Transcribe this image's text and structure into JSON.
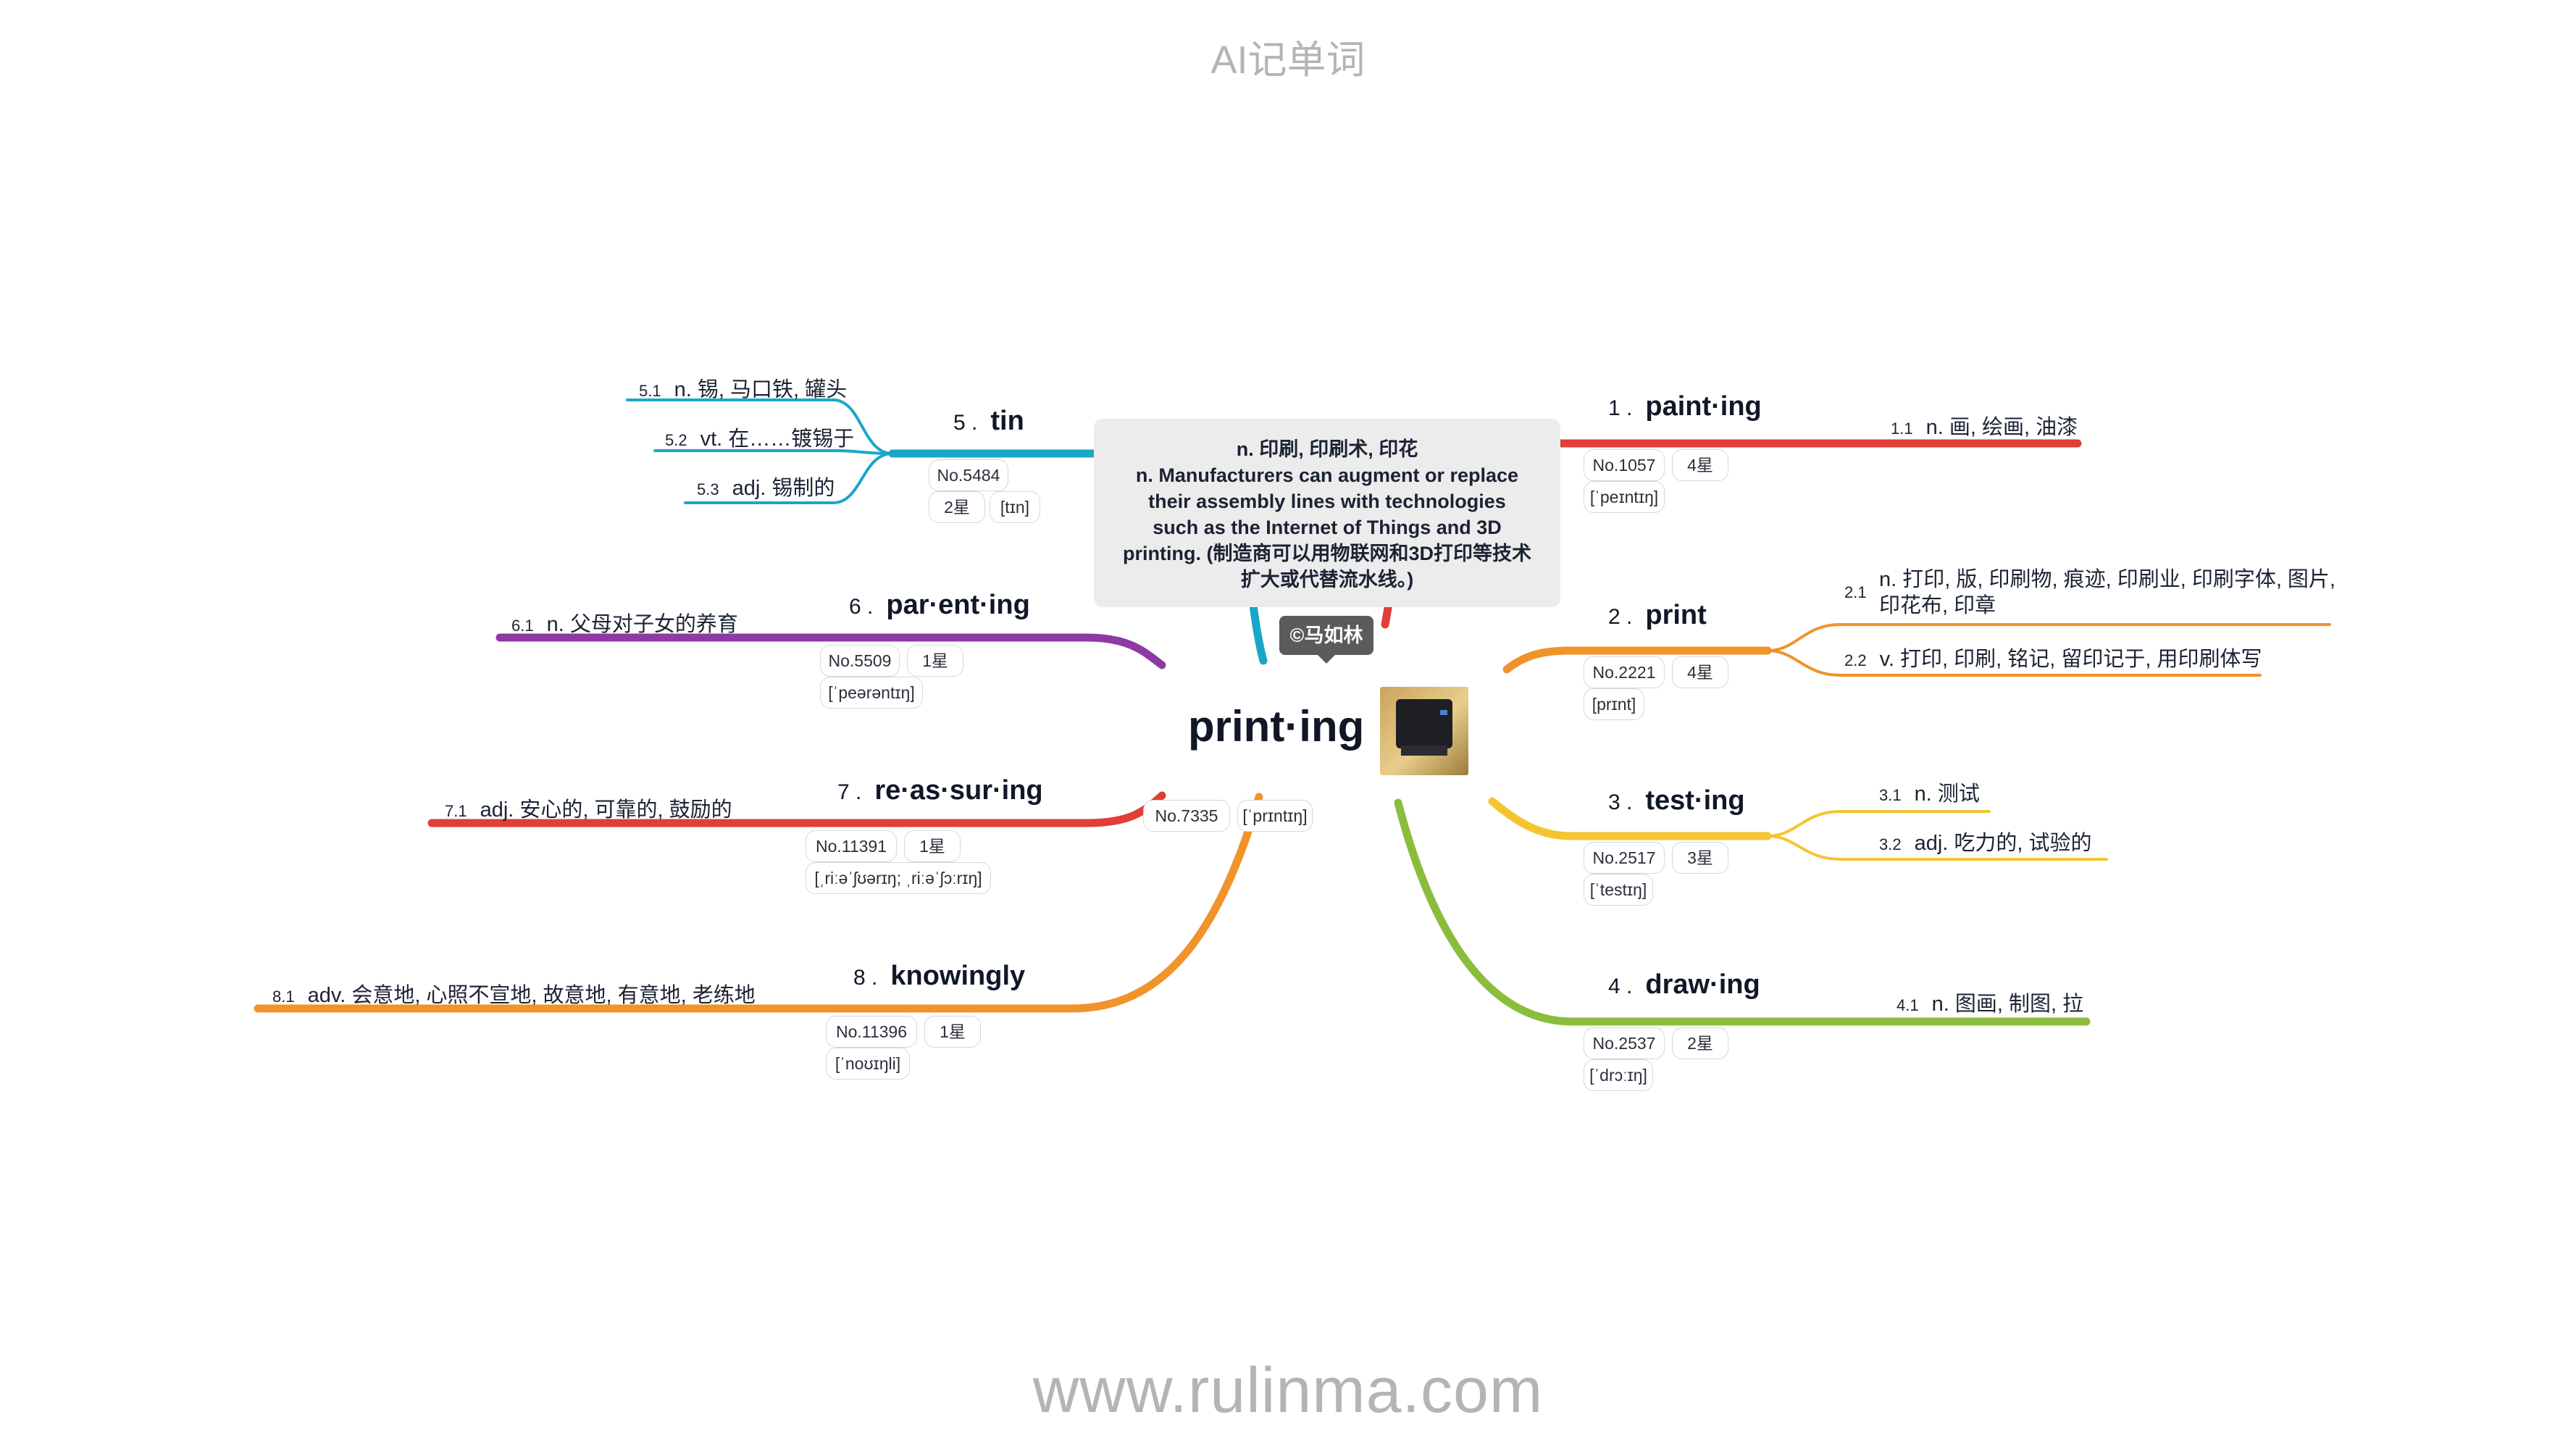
{
  "header": {
    "title": "AI记单词"
  },
  "footer": {
    "website": "www.rulinma.com"
  },
  "center": {
    "word": "print·ing",
    "no": "No.7335",
    "phonetic": "[ˈprɪntɪŋ]",
    "image_alt": "printer-photo"
  },
  "note": {
    "lines": [
      "n. 印刷, 印刷术, 印花",
      "n. Manufacturers can augment or replace",
      "their assembly lines with technologies",
      "such as the Internet of Things and 3D",
      "printing. (制造商可以用物联网和3D打印等技术",
      "扩大或代替流水线。)"
    ]
  },
  "copyright": "©马如林",
  "colors": {
    "painting": "#e03e36",
    "print": "#f0932b",
    "testing": "#f5c431",
    "drawing": "#8bbd3d",
    "tin": "#1ba6c9",
    "parenting": "#8e3aa3",
    "reassuring": "#e03e36",
    "knowingly": "#f0932b"
  },
  "branches": [
    {
      "idx": "1 .",
      "word": "paint·ing",
      "no": "No.1057",
      "stars": "4星",
      "phonetic": "[ˈpeɪntɪŋ]",
      "defs": [
        {
          "n": "1.1",
          "text": "n. 画, 绘画, 油漆"
        }
      ]
    },
    {
      "idx": "2 .",
      "word": "print",
      "no": "No.2221",
      "stars": "4星",
      "phonetic": "[prɪnt]",
      "defs": [
        {
          "n": "2.1",
          "text_line1": "n. 打印, 版, 印刷物, 痕迹, 印刷业, 印刷字体, 图片,",
          "text_line2": "印花布, 印章"
        },
        {
          "n": "2.2",
          "text": "v. 打印, 印刷, 铭记, 留印记于, 用印刷体写"
        }
      ]
    },
    {
      "idx": "3 .",
      "word": "test·ing",
      "no": "No.2517",
      "stars": "3星",
      "phonetic": "[ˈtestɪŋ]",
      "defs": [
        {
          "n": "3.1",
          "text": "n. 测试"
        },
        {
          "n": "3.2",
          "text": "adj. 吃力的, 试验的"
        }
      ]
    },
    {
      "idx": "4 .",
      "word": "draw·ing",
      "no": "No.2537",
      "stars": "2星",
      "phonetic": "[ˈdrɔːɪŋ]",
      "defs": [
        {
          "n": "4.1",
          "text": "n. 图画, 制图, 拉"
        }
      ]
    },
    {
      "idx": "5 .",
      "word": "tin",
      "no": "No.5484",
      "stars": "2星",
      "phonetic": "[tɪn]",
      "defs": [
        {
          "n": "5.1",
          "text": "n. 锡, 马口铁, 罐头"
        },
        {
          "n": "5.2",
          "text": "vt. 在……镀锡于"
        },
        {
          "n": "5.3",
          "text": "adj. 锡制的"
        }
      ]
    },
    {
      "idx": "6 .",
      "word": "par·ent·ing",
      "no": "No.5509",
      "stars": "1星",
      "phonetic": "[ˈpeərəntɪŋ]",
      "defs": [
        {
          "n": "6.1",
          "text": "n. 父母对子女的养育"
        }
      ]
    },
    {
      "idx": "7 .",
      "word": "re·as·sur·ing",
      "no": "No.11391",
      "stars": "1星",
      "phonetic": "[ˌriːəˈʃʊərɪŋ; ˌriːəˈʃɔːrɪŋ]",
      "defs": [
        {
          "n": "7.1",
          "text": "adj. 安心的, 可靠的, 鼓励的"
        }
      ]
    },
    {
      "idx": "8 .",
      "word": "knowingly",
      "no": "No.11396",
      "stars": "1星",
      "phonetic": "[ˈnoʊɪŋli]",
      "defs": [
        {
          "n": "8.1",
          "text": "adv. 会意地, 心照不宣地, 故意地, 有意地, 老练地"
        }
      ]
    }
  ]
}
